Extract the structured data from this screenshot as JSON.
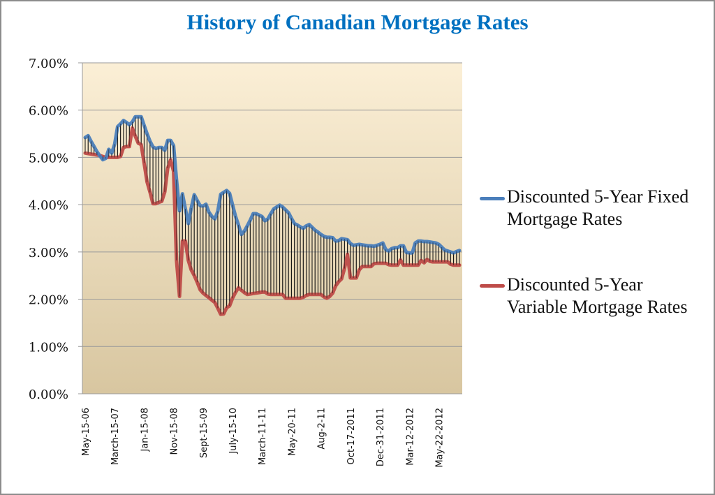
{
  "chart_data": {
    "type": "line",
    "title": "History of Canadian Mortgage Rates",
    "xlabel": "",
    "ylabel": "",
    "ylim": [
      0,
      7
    ],
    "yticks": [
      "0.00%",
      "1.00%",
      "2.00%",
      "3.00%",
      "4.00%",
      "5.00%",
      "6.00%",
      "7.00%"
    ],
    "x_tick_labels": [
      "May-15-06",
      "March-15-07",
      "Jan-15-08",
      "Nov-15-08",
      "Sept-15-09",
      "July-15-10",
      "March-11-11",
      "May-20-11",
      "Aug-2-11",
      "Oct-17-2011",
      "Dec-31-2011",
      "Mar-12-2012",
      "May-22-2012"
    ],
    "x_tick_every": 10,
    "grid": "horizontal",
    "high_low_lines": true,
    "legend_position": "right",
    "plot_background": [
      "#FBEFD6",
      "#D8C6A0"
    ],
    "series": [
      {
        "name": "Discounted 5-Year Fixed Mortgage Rates",
        "color": "#4A7EBB",
        "values": [
          5.42,
          5.46,
          5.34,
          5.23,
          5.12,
          5.03,
          4.95,
          4.98,
          5.17,
          5.09,
          5.28,
          5.65,
          5.71,
          5.78,
          5.74,
          5.69,
          5.75,
          5.86,
          5.86,
          5.86,
          5.68,
          5.5,
          5.34,
          5.22,
          5.19,
          5.21,
          5.21,
          5.15,
          5.36,
          5.36,
          5.25,
          4.53,
          3.87,
          4.23,
          3.91,
          3.6,
          3.93,
          4.21,
          4.09,
          3.98,
          3.97,
          4.01,
          3.84,
          3.75,
          3.7,
          3.86,
          4.22,
          4.26,
          4.3,
          4.24,
          4.0,
          3.76,
          3.57,
          3.37,
          3.44,
          3.55,
          3.67,
          3.81,
          3.81,
          3.78,
          3.75,
          3.66,
          3.7,
          3.81,
          3.91,
          3.95,
          3.99,
          3.95,
          3.89,
          3.83,
          3.71,
          3.6,
          3.57,
          3.53,
          3.5,
          3.55,
          3.58,
          3.52,
          3.46,
          3.42,
          3.37,
          3.33,
          3.31,
          3.31,
          3.3,
          3.23,
          3.24,
          3.28,
          3.27,
          3.26,
          3.18,
          3.14,
          3.15,
          3.16,
          3.15,
          3.14,
          3.13,
          3.13,
          3.12,
          3.14,
          3.16,
          3.19,
          3.05,
          3.02,
          3.07,
          3.09,
          3.09,
          3.13,
          3.13,
          2.99,
          2.98,
          2.98,
          3.19,
          3.23,
          3.23,
          3.22,
          3.22,
          3.21,
          3.2,
          3.19,
          3.16,
          3.1,
          3.04,
          3.02,
          3.0,
          2.98,
          3.01,
          3.03
        ]
      },
      {
        "name": "Discounted 5-Year Variable Mortgage Rates",
        "color": "#BE4B48",
        "values": [
          5.09,
          5.08,
          5.07,
          5.06,
          5.05,
          5.04,
          5.02,
          5.0,
          5.0,
          5.0,
          5.0,
          5.0,
          5.02,
          5.21,
          5.23,
          5.23,
          5.62,
          5.45,
          5.3,
          5.27,
          4.88,
          4.48,
          4.26,
          4.02,
          4.02,
          4.05,
          4.07,
          4.27,
          4.77,
          4.95,
          4.7,
          2.82,
          2.06,
          3.23,
          3.23,
          2.82,
          2.62,
          2.5,
          2.36,
          2.2,
          2.13,
          2.08,
          2.03,
          1.98,
          1.93,
          1.81,
          1.68,
          1.69,
          1.82,
          1.86,
          2.02,
          2.14,
          2.24,
          2.19,
          2.14,
          2.1,
          2.11,
          2.12,
          2.13,
          2.14,
          2.15,
          2.15,
          2.11,
          2.1,
          2.1,
          2.1,
          2.1,
          2.1,
          2.02,
          2.02,
          2.02,
          2.02,
          2.02,
          2.02,
          2.04,
          2.08,
          2.1,
          2.1,
          2.1,
          2.1,
          2.1,
          2.05,
          2.02,
          2.06,
          2.13,
          2.28,
          2.37,
          2.43,
          2.65,
          2.95,
          2.45,
          2.45,
          2.45,
          2.62,
          2.69,
          2.69,
          2.69,
          2.69,
          2.75,
          2.76,
          2.76,
          2.76,
          2.76,
          2.73,
          2.72,
          2.72,
          2.72,
          2.83,
          2.72,
          2.72,
          2.72,
          2.72,
          2.72,
          2.72,
          2.82,
          2.77,
          2.84,
          2.8,
          2.79,
          2.79,
          2.79,
          2.79,
          2.79,
          2.79,
          2.74,
          2.72,
          2.72,
          2.72
        ]
      }
    ]
  }
}
